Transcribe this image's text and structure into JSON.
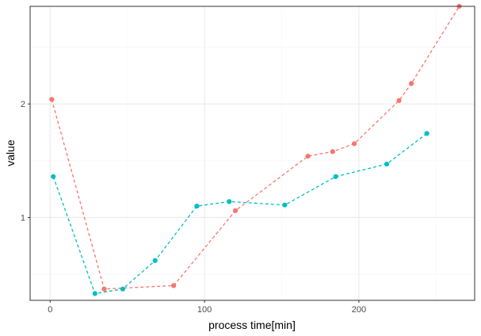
{
  "chart_data": {
    "type": "line",
    "title": "",
    "xlabel": "process time[min]",
    "ylabel": "value",
    "xlim": [
      -13,
      275
    ],
    "ylim": [
      0.27,
      2.86
    ],
    "x_ticks": [
      0,
      100,
      200
    ],
    "y_ticks": [
      1,
      2
    ],
    "x_minor": [
      50,
      150,
      250
    ],
    "y_minor": [
      0.5,
      1.5,
      2.5
    ],
    "grid": true,
    "legend": "none",
    "series": [
      {
        "color": "#F8766D",
        "line_style": "dashed",
        "x": [
          1,
          35,
          80,
          120,
          167,
          183,
          197,
          226,
          234,
          265
        ],
        "y": [
          2.04,
          0.37,
          0.4,
          1.06,
          1.54,
          1.58,
          1.65,
          2.03,
          2.18,
          2.86
        ]
      },
      {
        "color": "#00BFC4",
        "line_style": "dashed",
        "x": [
          2,
          29,
          47,
          68,
          95,
          116,
          152,
          185,
          218,
          244
        ],
        "y": [
          1.36,
          0.33,
          0.37,
          0.62,
          1.1,
          1.14,
          1.11,
          1.36,
          1.47,
          1.74
        ]
      }
    ]
  },
  "colors": {
    "panel_border": "#333333",
    "grid_major": "#ebebeb",
    "grid_minor": "#f5f5f5",
    "background": "#ffffff"
  }
}
